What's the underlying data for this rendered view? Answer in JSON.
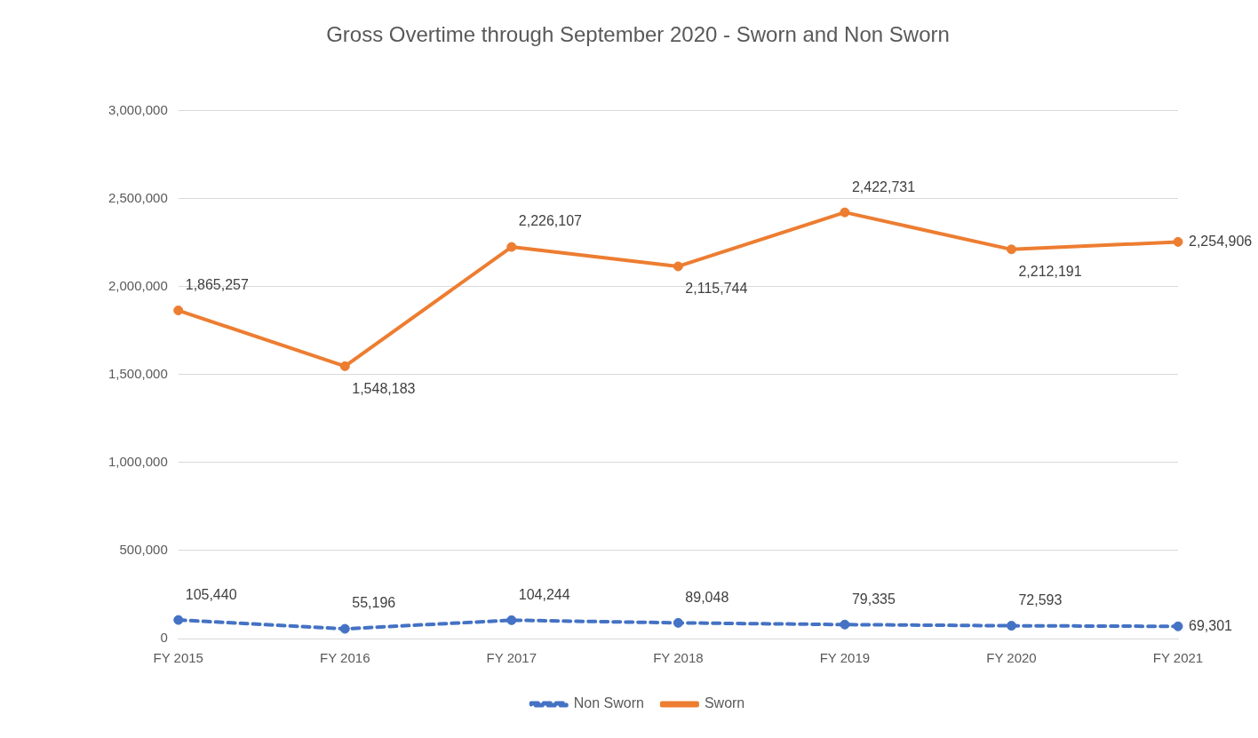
{
  "chart_data": {
    "type": "line",
    "title": "Gross Overtime through September 2020 - Sworn and Non Sworn",
    "categories": [
      "FY 2015",
      "FY 2016",
      "FY 2017",
      "FY 2018",
      "FY 2019",
      "FY 2020",
      "FY 2021"
    ],
    "series": [
      {
        "name": "Non Sworn",
        "color": "#4472c4",
        "values": [
          105440,
          55196,
          104244,
          89048,
          79335,
          72593,
          69301
        ],
        "value_labels": [
          "105,440",
          "55,196",
          "104,244",
          "89,048",
          "79,335",
          "72,593",
          "69,301"
        ],
        "line_style": "dashed"
      },
      {
        "name": "Sworn",
        "color": "#ed7d31",
        "values": [
          1865257,
          1548183,
          2226107,
          2115744,
          2422731,
          2212191,
          2254906
        ],
        "value_labels": [
          "1,865,257",
          "1,548,183",
          "2,226,107",
          "2,115,744",
          "2,422,731",
          "2,212,191",
          "2,254,906"
        ],
        "line_style": "solid"
      }
    ],
    "ylim": [
      0,
      3000000
    ],
    "yticks": [
      {
        "value": 0,
        "label": "0"
      },
      {
        "value": 500000,
        "label": "500,000"
      },
      {
        "value": 1000000,
        "label": "1,000,000"
      },
      {
        "value": 1500000,
        "label": "1,500,000"
      },
      {
        "value": 2000000,
        "label": "2,000,000"
      },
      {
        "value": 2500000,
        "label": "2,500,000"
      },
      {
        "value": 3000000,
        "label": "3,000,000"
      }
    ],
    "grid": "y",
    "legend": "bottom",
    "marker": "circle"
  }
}
